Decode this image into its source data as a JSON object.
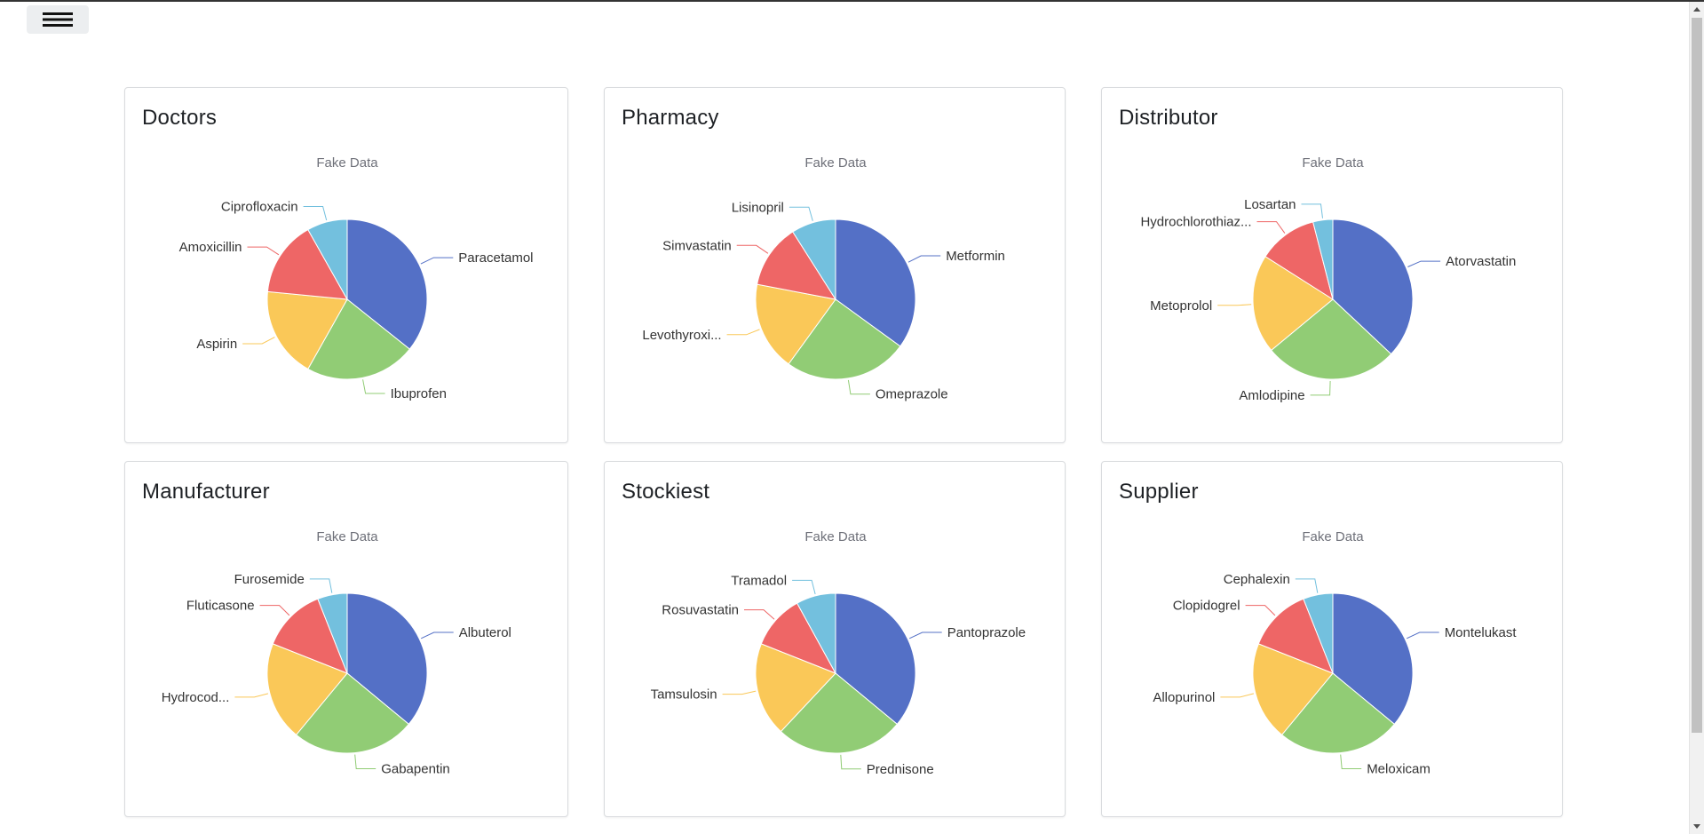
{
  "menu": {
    "icon": "hamburger-icon"
  },
  "palette": [
    "#5470c6",
    "#91cc75",
    "#fac858",
    "#ee6666",
    "#73c0de"
  ],
  "chart_data": [
    {
      "type": "pie",
      "card_title": "Doctors",
      "title": "Fake Data",
      "labels": [
        "Paracetamol",
        "Ibuprofen",
        "Aspirin",
        "Amoxicillin",
        "Ciprofloxacin"
      ],
      "values": [
        35,
        22,
        18,
        15,
        8
      ]
    },
    {
      "type": "pie",
      "card_title": "Pharmacy",
      "title": "Fake Data",
      "labels": [
        "Metformin",
        "Omeprazole",
        "Levothyroxi...",
        "Simvastatin",
        "Lisinopril"
      ],
      "values": [
        35,
        25,
        18,
        13,
        9
      ]
    },
    {
      "type": "pie",
      "card_title": "Distributor",
      "title": "Fake Data",
      "labels": [
        "Atorvastatin",
        "Amlodipine",
        "Metoprolol",
        "Hydrochlorothiaz...",
        "Losartan"
      ],
      "values": [
        37,
        27,
        20,
        12,
        4
      ]
    },
    {
      "type": "pie",
      "card_title": "Manufacturer",
      "title": "Fake Data",
      "labels": [
        "Albuterol",
        "Gabapentin",
        "Hydrocod...",
        "Fluticasone",
        "Furosemide"
      ],
      "values": [
        36,
        25,
        20,
        13,
        6
      ]
    },
    {
      "type": "pie",
      "card_title": "Stockiest",
      "title": "Fake Data",
      "labels": [
        "Pantoprazole",
        "Prednisone",
        "Tamsulosin",
        "Rosuvastatin",
        "Tramadol"
      ],
      "values": [
        36,
        26,
        19,
        11,
        8
      ]
    },
    {
      "type": "pie",
      "card_title": "Supplier",
      "title": "Fake Data",
      "labels": [
        "Montelukast",
        "Meloxicam",
        "Allopurinol",
        "Clopidogrel",
        "Cephalexin"
      ],
      "values": [
        36,
        25,
        20,
        13,
        6
      ]
    }
  ]
}
